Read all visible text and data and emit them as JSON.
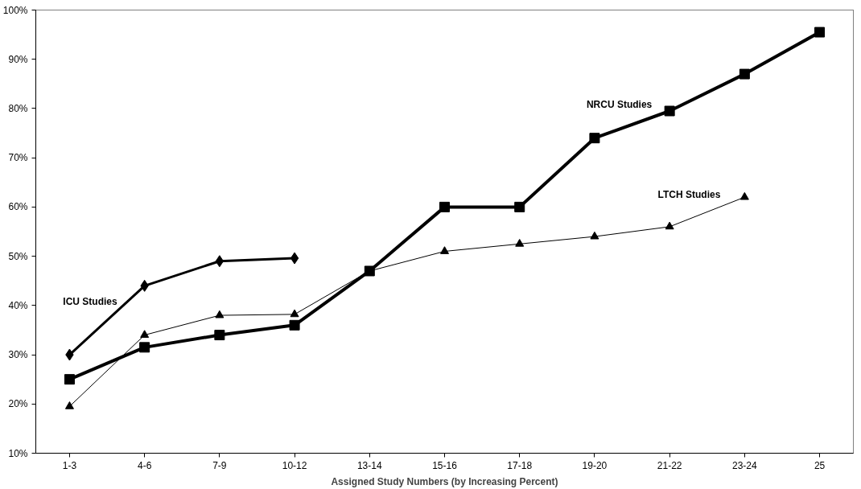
{
  "chart_data": {
    "type": "line",
    "xlabel": "Assigned Study Numbers (by Increasing Percent)",
    "categories": [
      "1-3",
      "4-6",
      "7-9",
      "10-12",
      "13-14",
      "15-16",
      "17-18",
      "19-20",
      "21-22",
      "23-24",
      "25"
    ],
    "series": [
      {
        "name": "ICU Studies",
        "color": "#000000",
        "marker": "diamond",
        "values": [
          30,
          44,
          49,
          49.6,
          null,
          null,
          null,
          null,
          null,
          null,
          null
        ]
      },
      {
        "name": "LTCH Studies",
        "color": "#000000",
        "marker": "triangle",
        "values": [
          19.5,
          34,
          38,
          38.2,
          47,
          51,
          52.5,
          54,
          56,
          62,
          null
        ]
      },
      {
        "name": "NRCU Studies",
        "color": "#000000",
        "marker": "square",
        "values": [
          25,
          31.5,
          34,
          36,
          47,
          60,
          60,
          74,
          79.5,
          87,
          95.5
        ]
      }
    ],
    "ylim": [
      10,
      100
    ],
    "yticks": [
      {
        "value": 10,
        "label": "10%"
      },
      {
        "value": 20,
        "label": "20%"
      },
      {
        "value": 30,
        "label": "30%"
      },
      {
        "value": 40,
        "label": "40%"
      },
      {
        "value": 50,
        "label": "50%"
      },
      {
        "value": 60,
        "label": "60%"
      },
      {
        "value": 70,
        "label": "70%"
      },
      {
        "value": 80,
        "label": "80%"
      },
      {
        "value": 90,
        "label": "90%"
      },
      {
        "value": 100,
        "label": "100%"
      }
    ],
    "grid": false
  }
}
